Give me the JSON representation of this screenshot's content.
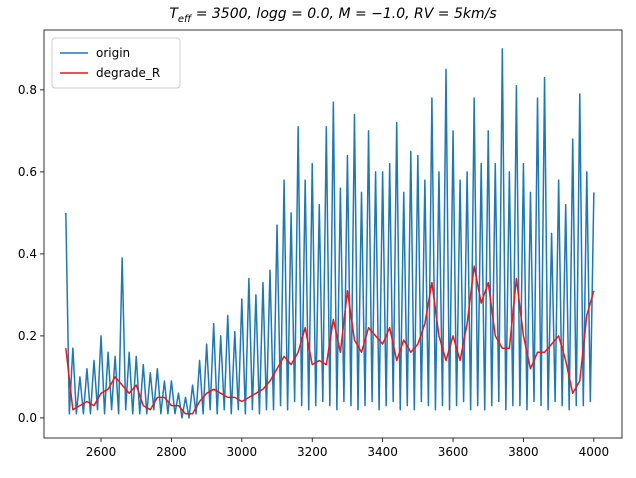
{
  "chart_data": {
    "type": "line",
    "title": [
      "T",
      "eff",
      " = 3500, logg = 0.0, M = −1.0, RV = 5km/s"
    ],
    "xlim": [
      2438,
      4080
    ],
    "ylim": [
      -0.049,
      0.946
    ],
    "xticks": [
      2600,
      2800,
      3000,
      3200,
      3400,
      3600,
      3800,
      4000
    ],
    "yticks": [
      {
        "value": 0,
        "label": "0.0"
      },
      0.2,
      0.4,
      0.6,
      0.8
    ],
    "grid": false,
    "legend": "upper-left",
    "series": [
      {
        "name": "origin",
        "color": "#1f77b4",
        "x": [
          2500,
          2510,
          2520,
          2530,
          2540,
          2550,
          2560,
          2570,
          2580,
          2590,
          2600,
          2610,
          2620,
          2630,
          2640,
          2650,
          2660,
          2670,
          2680,
          2690,
          2700,
          2710,
          2720,
          2730,
          2740,
          2750,
          2760,
          2770,
          2780,
          2790,
          2800,
          2810,
          2820,
          2830,
          2840,
          2850,
          2860,
          2870,
          2880,
          2890,
          2900,
          2910,
          2920,
          2930,
          2940,
          2950,
          2960,
          2970,
          2980,
          2990,
          3000,
          3010,
          3020,
          3030,
          3040,
          3050,
          3060,
          3070,
          3080,
          3090,
          3100,
          3110,
          3120,
          3130,
          3140,
          3150,
          3160,
          3170,
          3180,
          3190,
          3200,
          3210,
          3220,
          3230,
          3240,
          3250,
          3260,
          3270,
          3280,
          3290,
          3300,
          3310,
          3320,
          3330,
          3340,
          3350,
          3360,
          3370,
          3380,
          3390,
          3400,
          3410,
          3420,
          3430,
          3440,
          3450,
          3460,
          3470,
          3480,
          3490,
          3500,
          3510,
          3520,
          3530,
          3540,
          3550,
          3560,
          3570,
          3580,
          3590,
          3600,
          3610,
          3620,
          3630,
          3640,
          3650,
          3660,
          3670,
          3680,
          3690,
          3700,
          3710,
          3720,
          3730,
          3740,
          3750,
          3760,
          3770,
          3780,
          3790,
          3800,
          3810,
          3820,
          3830,
          3840,
          3850,
          3860,
          3870,
          3880,
          3890,
          3900,
          3910,
          3920,
          3930,
          3940,
          3950,
          3960,
          3970,
          3980,
          3990,
          4000
        ],
        "values": [
          0.5,
          0.01,
          0.17,
          0.01,
          0.1,
          0.01,
          0.12,
          0.01,
          0.14,
          0.02,
          0.2,
          0.01,
          0.16,
          0.02,
          0.15,
          0.01,
          0.39,
          0.02,
          0.16,
          0.01,
          0.15,
          0.01,
          0.13,
          0.01,
          0.11,
          0.02,
          0.12,
          0.01,
          0.09,
          0.01,
          0.09,
          0.01,
          0.06,
          0.0,
          0.05,
          0.0,
          0.08,
          0.01,
          0.14,
          0.01,
          0.18,
          0.02,
          0.23,
          0.01,
          0.2,
          0.02,
          0.25,
          0.01,
          0.21,
          0.02,
          0.29,
          0.01,
          0.34,
          0.02,
          0.3,
          0.01,
          0.33,
          0.02,
          0.36,
          0.02,
          0.47,
          0.03,
          0.58,
          0.02,
          0.5,
          0.04,
          0.71,
          0.03,
          0.58,
          0.02,
          0.62,
          0.03,
          0.52,
          0.04,
          0.71,
          0.03,
          0.77,
          0.02,
          0.56,
          0.04,
          0.64,
          0.03,
          0.74,
          0.02,
          0.55,
          0.03,
          0.7,
          0.04,
          0.6,
          0.02,
          0.6,
          0.03,
          0.62,
          0.04,
          0.72,
          0.02,
          0.55,
          0.03,
          0.65,
          0.02,
          0.64,
          0.04,
          0.58,
          0.03,
          0.78,
          0.02,
          0.6,
          0.03,
          0.85,
          0.02,
          0.7,
          0.03,
          0.58,
          0.04,
          0.6,
          0.02,
          0.78,
          0.03,
          0.62,
          0.02,
          0.7,
          0.03,
          0.62,
          0.04,
          0.9,
          0.02,
          0.6,
          0.03,
          0.81,
          0.03,
          0.62,
          0.02,
          0.55,
          0.04,
          0.78,
          0.03,
          0.83,
          0.02,
          0.45,
          0.04,
          0.58,
          0.03,
          0.52,
          0.02,
          0.68,
          0.03,
          0.79,
          0.03,
          0.6,
          0.04,
          0.55
        ]
      },
      {
        "name": "degrade_R",
        "color": "#e41a1c",
        "x": [
          2500,
          2520,
          2540,
          2560,
          2580,
          2600,
          2620,
          2640,
          2660,
          2680,
          2700,
          2720,
          2740,
          2760,
          2780,
          2800,
          2820,
          2840,
          2860,
          2880,
          2900,
          2920,
          2940,
          2960,
          2980,
          3000,
          3020,
          3040,
          3060,
          3080,
          3100,
          3120,
          3140,
          3160,
          3180,
          3200,
          3220,
          3240,
          3260,
          3280,
          3300,
          3320,
          3340,
          3360,
          3380,
          3400,
          3420,
          3440,
          3460,
          3480,
          3500,
          3520,
          3540,
          3560,
          3580,
          3600,
          3620,
          3640,
          3660,
          3680,
          3700,
          3720,
          3740,
          3760,
          3780,
          3800,
          3820,
          3840,
          3860,
          3880,
          3900,
          3920,
          3940,
          3960,
          3980,
          4000
        ],
        "values": [
          0.17,
          0.02,
          0.03,
          0.04,
          0.03,
          0.06,
          0.07,
          0.1,
          0.08,
          0.06,
          0.08,
          0.03,
          0.02,
          0.05,
          0.05,
          0.03,
          0.03,
          0.01,
          0.01,
          0.04,
          0.06,
          0.07,
          0.06,
          0.05,
          0.05,
          0.04,
          0.05,
          0.06,
          0.07,
          0.09,
          0.12,
          0.15,
          0.13,
          0.16,
          0.22,
          0.13,
          0.14,
          0.13,
          0.24,
          0.16,
          0.31,
          0.19,
          0.16,
          0.22,
          0.2,
          0.18,
          0.22,
          0.14,
          0.19,
          0.16,
          0.18,
          0.23,
          0.33,
          0.2,
          0.14,
          0.2,
          0.14,
          0.23,
          0.37,
          0.28,
          0.33,
          0.2,
          0.17,
          0.17,
          0.34,
          0.2,
          0.12,
          0.16,
          0.16,
          0.18,
          0.2,
          0.14,
          0.06,
          0.09,
          0.25,
          0.31
        ]
      }
    ]
  }
}
